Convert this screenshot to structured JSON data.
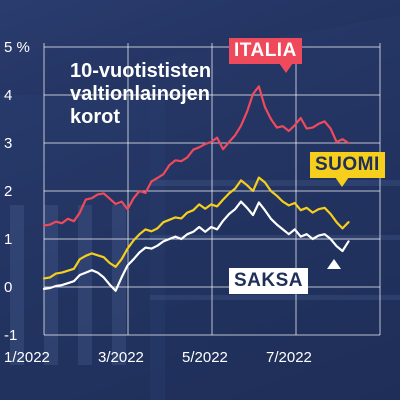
{
  "chart_data": {
    "type": "line",
    "title": "10-vuotististen valtionlainojen\nkorot",
    "ylim": [
      -1,
      5
    ],
    "yticks": [
      "5 %",
      "4",
      "3",
      "2",
      "1",
      "0",
      "-1"
    ],
    "x_ticks": [
      "1/2022",
      "3/2022",
      "5/2022",
      "7/2022"
    ],
    "x_tick_positions": [
      0,
      2,
      4,
      6
    ],
    "xlim": [
      0,
      8
    ],
    "grid": true,
    "series": [
      {
        "name": "ITALIA",
        "color": "#ef4a5c",
        "values": [
          1.28,
          1.3,
          1.36,
          1.33,
          1.42,
          1.37,
          1.55,
          1.82,
          1.85,
          1.93,
          1.95,
          1.84,
          1.73,
          1.78,
          1.62,
          1.85,
          2.0,
          1.96,
          2.2,
          2.27,
          2.35,
          2.54,
          2.64,
          2.62,
          2.7,
          2.86,
          2.91,
          2.98,
          3.02,
          3.11,
          2.87,
          3.02,
          3.16,
          3.36,
          3.65,
          4.02,
          4.18,
          3.75,
          3.5,
          3.32,
          3.35,
          3.25,
          3.37,
          3.52,
          3.3,
          3.32,
          3.4,
          3.45,
          3.3,
          3.02,
          3.08,
          3.0
        ]
      },
      {
        "name": "SUOMI",
        "color": "#f5cf1c",
        "values": [
          0.18,
          0.2,
          0.28,
          0.3,
          0.34,
          0.38,
          0.58,
          0.65,
          0.7,
          0.66,
          0.62,
          0.5,
          0.42,
          0.58,
          0.8,
          0.97,
          1.1,
          1.2,
          1.16,
          1.22,
          1.35,
          1.4,
          1.45,
          1.43,
          1.55,
          1.6,
          1.72,
          1.63,
          1.72,
          1.68,
          1.82,
          1.95,
          2.05,
          2.22,
          2.12,
          2.0,
          2.28,
          2.18,
          2.0,
          1.9,
          1.78,
          1.7,
          1.75,
          1.6,
          1.65,
          1.55,
          1.62,
          1.65,
          1.52,
          1.35,
          1.22,
          1.35
        ]
      },
      {
        "name": "SAKSA",
        "color": "#ffffff",
        "values": [
          -0.04,
          -0.02,
          0.02,
          0.04,
          0.08,
          0.12,
          0.25,
          0.3,
          0.35,
          0.3,
          0.2,
          0.05,
          -0.08,
          0.2,
          0.45,
          0.58,
          0.72,
          0.82,
          0.8,
          0.86,
          0.95,
          1.0,
          1.05,
          1.0,
          1.1,
          1.15,
          1.25,
          1.15,
          1.25,
          1.2,
          1.38,
          1.52,
          1.62,
          1.78,
          1.65,
          1.5,
          1.76,
          1.6,
          1.42,
          1.3,
          1.2,
          1.1,
          1.2,
          1.05,
          1.1,
          1.0,
          1.07,
          1.1,
          1.0,
          0.85,
          0.75,
          0.95
        ]
      }
    ]
  }
}
